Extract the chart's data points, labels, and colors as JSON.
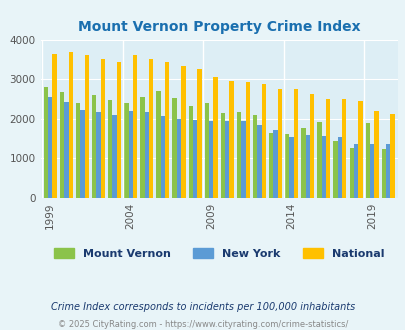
{
  "title": "Mount Vernon Property Crime Index",
  "title_color": "#1a6faf",
  "years": [
    1999,
    2000,
    2001,
    2002,
    2003,
    2004,
    2005,
    2006,
    2007,
    2008,
    2009,
    2010,
    2011,
    2012,
    2013,
    2014,
    2015,
    2016,
    2017,
    2018,
    2019,
    2020
  ],
  "mount_vernon": [
    2800,
    2670,
    2400,
    2600,
    2470,
    2400,
    2550,
    2700,
    2530,
    2330,
    2400,
    2150,
    2160,
    2100,
    1650,
    1620,
    1760,
    1910,
    1450,
    1260,
    1900,
    1250
  ],
  "new_york": [
    2560,
    2420,
    2220,
    2180,
    2100,
    2200,
    2160,
    2060,
    2000,
    1960,
    1950,
    1940,
    1940,
    1840,
    1720,
    1530,
    1600,
    1560,
    1530,
    1360,
    1370,
    1370
  ],
  "national": [
    3640,
    3680,
    3610,
    3520,
    3430,
    3610,
    3520,
    3430,
    3330,
    3260,
    3050,
    2960,
    2920,
    2880,
    2740,
    2750,
    2620,
    2510,
    2490,
    2440,
    2200,
    2110
  ],
  "mv_color": "#8bc34a",
  "ny_color": "#5b9bd5",
  "nat_color": "#ffc000",
  "bg_color": "#e8f4f8",
  "plot_bg": "#ddeef5",
  "ylabel_max": 4000,
  "yticks": [
    0,
    1000,
    2000,
    3000,
    4000
  ],
  "xlabel_years": [
    1999,
    2004,
    2009,
    2014,
    2019
  ],
  "footnote1": "Crime Index corresponds to incidents per 100,000 inhabitants",
  "footnote2": "© 2025 CityRating.com - https://www.cityrating.com/crime-statistics/",
  "legend_labels": [
    "Mount Vernon",
    "New York",
    "National"
  ],
  "legend_text_color": "#1a3a6f",
  "footnote1_color": "#1a3a6f",
  "footnote2_color": "#888888"
}
